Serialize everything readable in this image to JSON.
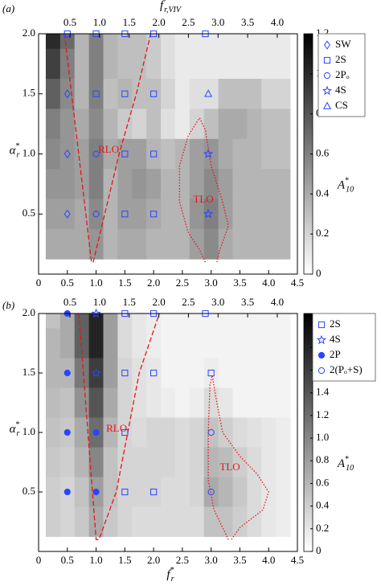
{
  "chart_data": [
    {
      "type": "heatmap",
      "panel_label": "(a)",
      "x": [
        0.25,
        0.5,
        0.75,
        1.0,
        1.25,
        1.5,
        1.75,
        2.0,
        2.25,
        2.5,
        2.75,
        3.0,
        3.25,
        3.5,
        3.75,
        4.0,
        4.25
      ],
      "y": [
        2.0,
        1.75,
        1.5,
        1.25,
        1.0,
        0.75,
        0.5,
        0.25
      ],
      "z": [
        [
          1.0,
          0.7,
          0.35,
          0.6,
          0.35,
          0.3,
          0.3,
          0.25,
          0.15,
          0.1,
          0.1,
          0.1,
          0.1,
          0.1,
          0.1,
          0.1,
          0.1
        ],
        [
          0.9,
          0.6,
          0.35,
          0.6,
          0.35,
          0.3,
          0.3,
          0.25,
          0.15,
          0.1,
          0.1,
          0.1,
          0.1,
          0.1,
          0.1,
          0.1,
          0.1
        ],
        [
          0.75,
          0.55,
          0.35,
          0.6,
          0.3,
          0.35,
          0.3,
          0.3,
          0.2,
          0.1,
          0.15,
          0.15,
          0.3,
          0.3,
          0.3,
          0.2,
          0.2
        ],
        [
          0.6,
          0.5,
          0.4,
          0.55,
          0.35,
          0.25,
          0.2,
          0.3,
          0.15,
          0.1,
          0.2,
          0.3,
          0.4,
          0.4,
          0.35,
          0.3,
          0.3
        ],
        [
          0.55,
          0.5,
          0.45,
          0.6,
          0.4,
          0.45,
          0.45,
          0.35,
          0.3,
          0.35,
          0.45,
          0.5,
          0.4,
          0.35,
          0.35,
          0.3,
          0.3
        ],
        [
          0.5,
          0.5,
          0.45,
          0.6,
          0.35,
          0.45,
          0.5,
          0.45,
          0.35,
          0.35,
          0.45,
          0.55,
          0.45,
          0.35,
          0.35,
          0.35,
          0.35
        ],
        [
          0.45,
          0.45,
          0.4,
          0.55,
          0.35,
          0.45,
          0.45,
          0.4,
          0.35,
          0.35,
          0.5,
          0.6,
          0.45,
          0.35,
          0.35,
          0.35,
          0.35
        ],
        [
          0.4,
          0.4,
          0.4,
          0.5,
          0.35,
          0.4,
          0.4,
          0.35,
          0.35,
          0.35,
          0.45,
          0.55,
          0.4,
          0.35,
          0.35,
          0.35,
          0.35
        ]
      ],
      "xlim": [
        0,
        4.5
      ],
      "xticks": [
        0,
        0.5,
        {
          "value": 1,
          "label": "1.0"
        },
        1.5,
        {
          "value": 2,
          "label": "2.0"
        },
        2.5,
        {
          "value": 3,
          "label": "3.0"
        },
        3.5,
        {
          "value": 4,
          "label": "4.0"
        },
        4.5
      ],
      "x2lim": [
        -0.03,
        4.34
      ],
      "x2ticks": [
        0.5,
        {
          "value": 1,
          "label": "1.0"
        },
        1.5,
        {
          "value": 2,
          "label": "2.0"
        },
        2.5,
        {
          "value": 3,
          "label": "3.0"
        },
        3.5,
        {
          "value": 4,
          "label": "4.0"
        }
      ],
      "x2label": {
        "base": "f",
        "sup": "*",
        "sub": "r,VIV"
      },
      "ylim": [
        0,
        2.0
      ],
      "yticks": [
        0.5,
        {
          "value": 1,
          "label": "1.0"
        },
        1.5,
        {
          "value": 2,
          "label": "2.0"
        }
      ],
      "ylabel": {
        "base": "α",
        "sup": "*",
        "sub": "r"
      },
      "colorbar": {
        "label": {
          "base": "A",
          "sup": "*",
          "sub": "10"
        },
        "lim": [
          0,
          1.2
        ],
        "ticks": [
          0,
          0.2,
          0.4,
          0.6,
          0.8,
          {
            "value": 1,
            "label": "1.0"
          },
          1.2
        ]
      },
      "series": [
        {
          "name": "SW",
          "color": "#2a45ff",
          "marker": "diamond",
          "filled": false,
          "x": [
            0.5,
            0.5,
            0.5
          ],
          "y": [
            1.5,
            1.0,
            0.5
          ]
        },
        {
          "name": "2S",
          "color": "#2a45ff",
          "marker": "square",
          "filled": false,
          "x": [
            0.5,
            1.0,
            1.5,
            2.0,
            2.9,
            1.0,
            1.5,
            2.0,
            1.5,
            2.0,
            1.5,
            2.0
          ],
          "y": [
            2.0,
            2.0,
            2.0,
            2.0,
            2.0,
            1.5,
            1.5,
            1.5,
            1.0,
            1.0,
            0.5,
            0.5
          ]
        },
        {
          "name": "2Pₒ",
          "color": "#2a45ff",
          "marker": "circle",
          "filled": false,
          "x": [
            1.0,
            1.0
          ],
          "y": [
            1.0,
            0.5
          ]
        },
        {
          "name": "4S",
          "color": "#2a45ff",
          "marker": "star",
          "filled": false,
          "x": [
            2.95,
            2.95
          ],
          "y": [
            1.0,
            0.5
          ]
        },
        {
          "name": "CS",
          "color": "#2a45ff",
          "marker": "triangle",
          "filled": false,
          "x": [
            2.95
          ],
          "y": [
            1.5
          ]
        }
      ],
      "boundaries": [
        {
          "name": "RLO",
          "color": "#e8141a",
          "style": "dashed",
          "x": [
            0.45,
            0.92,
            0.95,
            1.15,
            1.4,
            1.7,
            1.95
          ],
          "y": [
            2.0,
            0.1,
            0.1,
            0.5,
            1.0,
            1.5,
            2.0
          ]
        },
        {
          "name": "TLO",
          "color": "#e8141a",
          "style": "dotted",
          "x": [
            2.9,
            2.8,
            2.6,
            2.45,
            2.45,
            2.6,
            2.8,
            2.9,
            3.0,
            3.2,
            3.3,
            3.15,
            3.1
          ],
          "y": [
            0.1,
            0.2,
            0.35,
            0.6,
            0.9,
            1.15,
            1.3,
            1.2,
            0.9,
            0.6,
            0.4,
            0.2,
            0.1
          ]
        }
      ],
      "legend_loc": "right"
    },
    {
      "type": "heatmap",
      "panel_label": "(b)",
      "x": [
        0.25,
        0.5,
        0.75,
        1.0,
        1.25,
        1.5,
        1.75,
        2.0,
        2.25,
        2.5,
        2.75,
        3.0,
        3.25,
        3.5,
        3.75,
        4.0,
        4.25
      ],
      "y": [
        2.0,
        1.75,
        1.5,
        1.25,
        1.0,
        0.75,
        0.5,
        0.25
      ],
      "z": [
        [
          0.5,
          0.7,
          1.3,
          1.8,
          0.8,
          0.3,
          0.2,
          0.15,
          0.1,
          0.1,
          0.1,
          0.1,
          0.1,
          0.1,
          0.1,
          0.1,
          0.1
        ],
        [
          0.6,
          0.7,
          1.3,
          1.8,
          0.8,
          0.3,
          0.2,
          0.15,
          0.1,
          0.1,
          0.1,
          0.1,
          0.1,
          0.1,
          0.1,
          0.1,
          0.1
        ],
        [
          0.6,
          0.6,
          1.1,
          1.6,
          0.8,
          0.35,
          0.25,
          0.2,
          0.1,
          0.1,
          0.1,
          0.15,
          0.1,
          0.1,
          0.1,
          0.1,
          0.1
        ],
        [
          0.55,
          0.5,
          0.9,
          1.4,
          0.7,
          0.35,
          0.25,
          0.2,
          0.15,
          0.1,
          0.15,
          0.3,
          0.2,
          0.1,
          0.1,
          0.1,
          0.1
        ],
        [
          0.5,
          0.45,
          0.7,
          1.2,
          0.6,
          0.35,
          0.3,
          0.35,
          0.35,
          0.3,
          0.35,
          0.5,
          0.4,
          0.3,
          0.25,
          0.2,
          0.15
        ],
        [
          0.45,
          0.4,
          0.6,
          1.0,
          0.5,
          0.35,
          0.35,
          0.35,
          0.35,
          0.3,
          0.35,
          0.6,
          0.55,
          0.4,
          0.3,
          0.2,
          0.15
        ],
        [
          0.4,
          0.35,
          0.5,
          0.8,
          0.5,
          0.35,
          0.35,
          0.35,
          0.3,
          0.3,
          0.35,
          0.7,
          0.6,
          0.45,
          0.3,
          0.2,
          0.15
        ],
        [
          0.4,
          0.35,
          0.45,
          0.7,
          0.45,
          0.35,
          0.3,
          0.3,
          0.3,
          0.3,
          0.3,
          0.5,
          0.5,
          0.4,
          0.3,
          0.2,
          0.15
        ]
      ],
      "xlim": [
        0,
        4.5
      ],
      "xticks": [
        0,
        0.5,
        {
          "value": 1,
          "label": "1.0"
        },
        1.5,
        {
          "value": 2,
          "label": "2.0"
        },
        2.5,
        {
          "value": 3,
          "label": "3.0"
        },
        3.5,
        {
          "value": 4,
          "label": "4.0"
        },
        4.5
      ],
      "xlabel": {
        "base": "f",
        "sup": "*",
        "sub": "r"
      },
      "x2lim": [
        -0.03,
        4.34
      ],
      "x2ticks": [
        0.5,
        {
          "value": 1,
          "label": "1.0"
        },
        1.5,
        {
          "value": 2,
          "label": "2.0"
        },
        2.5,
        {
          "value": 3,
          "label": "3.0"
        },
        3.5,
        {
          "value": 4,
          "label": "4.0"
        }
      ],
      "ylim": [
        0,
        2.0
      ],
      "yticks": [
        0.5,
        {
          "value": 1,
          "label": "1.0"
        },
        1.5,
        {
          "value": 2,
          "label": "2.0"
        }
      ],
      "ylabel": {
        "base": "α",
        "sup": "*",
        "sub": "r"
      },
      "colorbar": {
        "label": {
          "base": "A",
          "sup": "*",
          "sub": "10"
        },
        "lim": [
          0,
          2.1
        ],
        "ticks": [
          0,
          0.2,
          0.4,
          0.6,
          0.8,
          {
            "value": 1,
            "label": "1.0"
          },
          1.2,
          1.4,
          1.6,
          1.8,
          {
            "value": 2,
            "label": "2.0"
          }
        ]
      },
      "series": [
        {
          "name": "2S",
          "color": "#2a45ff",
          "marker": "square",
          "filled": false,
          "x": [
            1.5,
            2.0,
            2.9,
            1.5,
            2.0,
            3.0,
            1.5,
            1.5,
            2.0
          ],
          "y": [
            2.0,
            2.0,
            2.0,
            1.5,
            1.5,
            1.5,
            1.0,
            0.5,
            0.5
          ]
        },
        {
          "name": "4S",
          "color": "#2a45ff",
          "marker": "star",
          "filled": false,
          "x": [
            1.0,
            1.0
          ],
          "y": [
            2.0,
            1.5
          ]
        },
        {
          "name": "2P",
          "color": "#2a45ff",
          "marker": "circle",
          "filled": true,
          "x": [
            0.5,
            0.5,
            0.5,
            1.0,
            0.5,
            1.0
          ],
          "y": [
            2.0,
            1.5,
            1.0,
            1.0,
            0.5,
            0.5
          ]
        },
        {
          "name": "2(Pₒ+S)",
          "color": "#2a45ff",
          "marker": "circle",
          "filled": false,
          "x": [
            3.0,
            3.0
          ],
          "y": [
            1.0,
            0.5
          ]
        }
      ],
      "boundaries": [
        {
          "name": "RLO",
          "color": "#e8141a",
          "style": "dashed",
          "x": [
            0.7,
            1.0,
            1.05,
            1.35,
            1.55,
            1.75,
            2.1
          ],
          "y": [
            2.0,
            0.1,
            0.1,
            0.5,
            1.0,
            1.5,
            2.0
          ]
        },
        {
          "name": "TLO",
          "color": "#e8141a",
          "style": "dotted",
          "x": [
            3.3,
            3.05,
            2.95,
            2.95,
            2.98,
            3.02,
            3.08,
            3.2,
            3.5,
            3.8,
            4.0,
            3.9,
            3.5,
            3.35
          ],
          "y": [
            0.1,
            0.35,
            0.6,
            1.0,
            1.4,
            1.48,
            1.3,
            1.0,
            0.8,
            0.65,
            0.5,
            0.35,
            0.2,
            0.1
          ]
        }
      ],
      "legend_loc": "right"
    }
  ]
}
